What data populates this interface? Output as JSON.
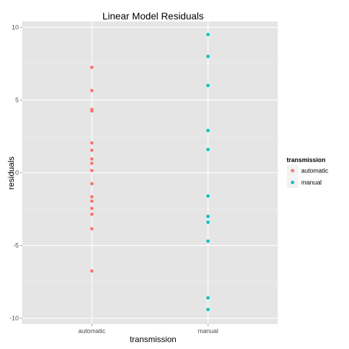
{
  "chart_data": {
    "type": "scatter",
    "title": "Linear Model Residuals",
    "xlabel": "transmission",
    "ylabel": "residuals",
    "categories": [
      "automatic",
      "manual"
    ],
    "ylim": [
      -10.4,
      10.4
    ],
    "yticks": [
      -10,
      -5,
      0,
      5,
      10
    ],
    "grid": true,
    "legend": {
      "title": "transmission",
      "placement": "right",
      "entries": [
        "automatic",
        "manual"
      ]
    },
    "series": [
      {
        "name": "automatic",
        "color": "#F8766D",
        "x": "automatic",
        "values": [
          7.25,
          5.65,
          4.35,
          4.25,
          2.05,
          1.55,
          0.95,
          0.65,
          0.15,
          -0.75,
          -1.65,
          -1.95,
          -2.45,
          -2.85,
          -3.85,
          -6.75
        ]
      },
      {
        "name": "manual",
        "color": "#00BFC4",
        "x": "manual",
        "values": [
          9.5,
          8.0,
          6.0,
          2.9,
          1.6,
          -1.6,
          -3.0,
          -3.4,
          -4.7,
          -8.6,
          -9.4
        ]
      }
    ]
  }
}
